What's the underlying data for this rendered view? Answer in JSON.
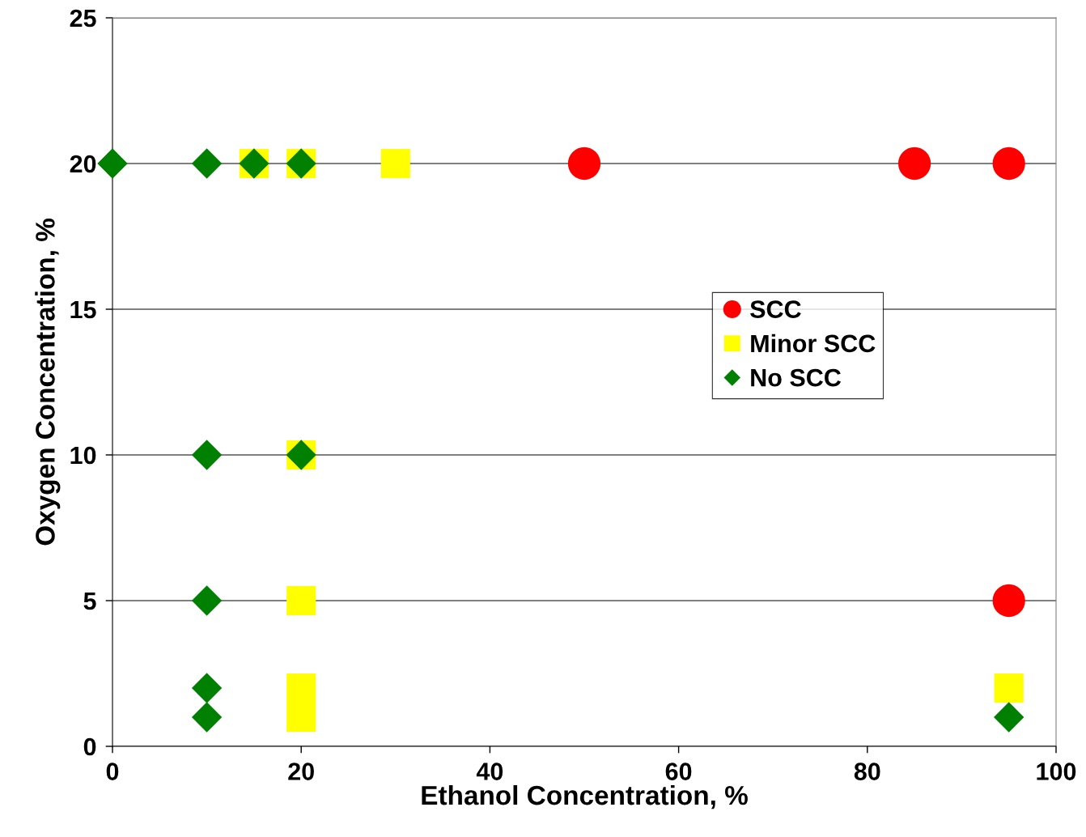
{
  "chart_data": {
    "type": "scatter",
    "xlabel": "Ethanol Concentration, %",
    "ylabel": "Oxygen Concentration, %",
    "xlim": [
      0,
      100
    ],
    "xticks": [
      0,
      20,
      40,
      60,
      80,
      100
    ],
    "ylim": [
      0,
      25
    ],
    "yticks": [
      0,
      5,
      10,
      15,
      20,
      25
    ],
    "grid": "y",
    "legend": "right",
    "series": [
      {
        "name": "SCC",
        "color": "#ff0000",
        "marker": "circle",
        "x": [
          50,
          85,
          95,
          95
        ],
        "values": [
          20,
          20,
          20,
          5
        ]
      },
      {
        "name": "Minor SCC",
        "color": "#ffff00",
        "marker": "square",
        "x": [
          15,
          20,
          30,
          20,
          20,
          20,
          20,
          95
        ],
        "values": [
          20,
          20,
          20,
          10,
          5,
          2,
          1,
          2
        ]
      },
      {
        "name": "No SCC",
        "color": "#008000",
        "marker": "diamond",
        "x": [
          0,
          10,
          15,
          20,
          10,
          20,
          10,
          10,
          10,
          95
        ],
        "values": [
          20,
          20,
          20,
          20,
          10,
          10,
          5,
          2,
          1,
          1
        ]
      }
    ]
  }
}
